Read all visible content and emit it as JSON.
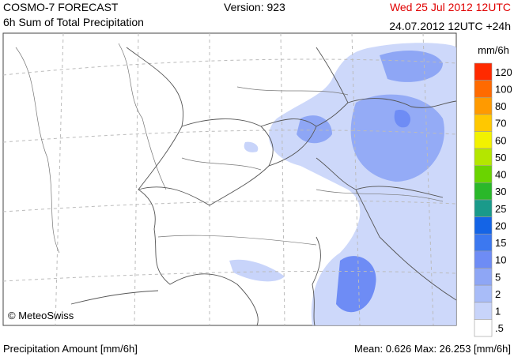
{
  "header": {
    "title": "COSMO-7 FORECAST",
    "subtitle": "6h Sum of Total Precipitation",
    "version": "Version: 923",
    "valid_time": "Wed 25 Jul 2012 12UTC",
    "run_time": "24.07.2012 12UTC +24h"
  },
  "legend": {
    "unit": "mm/6h",
    "items": [
      {
        "label": "120",
        "color": "#ff2a00"
      },
      {
        "label": "100",
        "color": "#ff6a00"
      },
      {
        "label": "80",
        "color": "#ff9a00"
      },
      {
        "label": "70",
        "color": "#ffc800"
      },
      {
        "label": "60",
        "color": "#f2f200"
      },
      {
        "label": "50",
        "color": "#b4e600"
      },
      {
        "label": "40",
        "color": "#6ad400"
      },
      {
        "label": "30",
        "color": "#2ab82a"
      },
      {
        "label": "25",
        "color": "#1a9a8a"
      },
      {
        "label": "20",
        "color": "#1464e6"
      },
      {
        "label": "15",
        "color": "#3c78f0"
      },
      {
        "label": "10",
        "color": "#6e8cf5"
      },
      {
        "label": "5",
        "color": "#8ea6f5"
      },
      {
        "label": "2",
        "color": "#a8bcf8"
      },
      {
        "label": "1",
        "color": "#c8d4fa"
      },
      {
        "label": ".5",
        "color": "#ffffff"
      }
    ]
  },
  "credit": "© MeteoSwiss",
  "footer": {
    "left": "Precipitation Amount [mm/6h]",
    "right": "Mean:  0.626 Max: 26.253 [mm/6h]"
  }
}
